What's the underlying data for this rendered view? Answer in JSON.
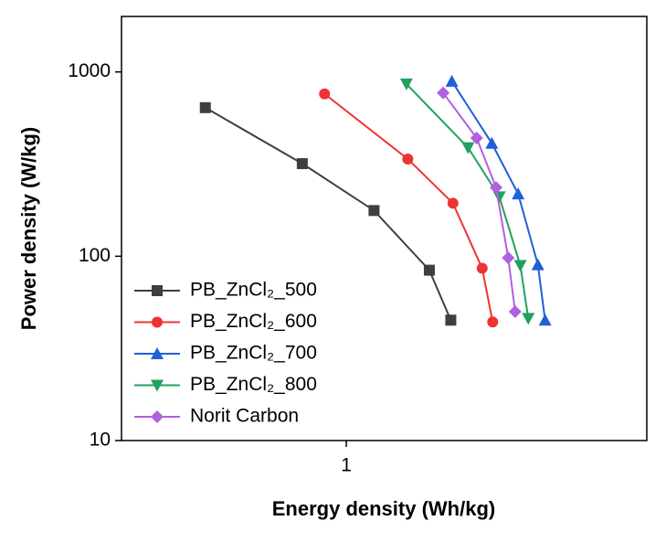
{
  "chart_data": {
    "type": "line",
    "x_label": "Energy density (Wh/kg)",
    "y_label": "Power density (W/kg)",
    "xlog": true,
    "ylog": true,
    "xlim": [
      0.3,
      5
    ],
    "ylim": [
      10,
      2000
    ],
    "xticks": [
      1
    ],
    "yticks": [
      10,
      100,
      1000
    ],
    "legend": "lower left",
    "series": [
      {
        "name": "PB_ZnCl₂_500",
        "color": "#3f3f3f",
        "marker": "square",
        "x": [
          0.47,
          0.79,
          1.16,
          1.56,
          1.75
        ],
        "values": [
          640,
          318,
          177,
          84,
          45
        ]
      },
      {
        "name": "PB_ZnCl₂_600",
        "color": "#ee3333",
        "marker": "circle",
        "x": [
          0.89,
          1.39,
          1.77,
          2.07,
          2.19
        ],
        "values": [
          760,
          337,
          194,
          86,
          44
        ]
      },
      {
        "name": "PB_ZnCl₂_700",
        "color": "#1f60d8",
        "marker": "triangle-up",
        "x": [
          1.76,
          2.18,
          2.51,
          2.79,
          2.9
        ],
        "values": [
          890,
          410,
          218,
          90,
          45
        ]
      },
      {
        "name": "PB_ZnCl₂_800",
        "color": "#22a060",
        "marker": "triangle-down",
        "x": [
          1.38,
          1.92,
          2.27,
          2.54,
          2.65
        ],
        "values": [
          860,
          388,
          210,
          89,
          46
        ]
      },
      {
        "name": "Norit Carbon",
        "color": "#b060e0",
        "marker": "diamond",
        "x": [
          1.68,
          2.01,
          2.23,
          2.38,
          2.47
        ],
        "values": [
          770,
          438,
          236,
          98,
          50
        ]
      }
    ]
  }
}
